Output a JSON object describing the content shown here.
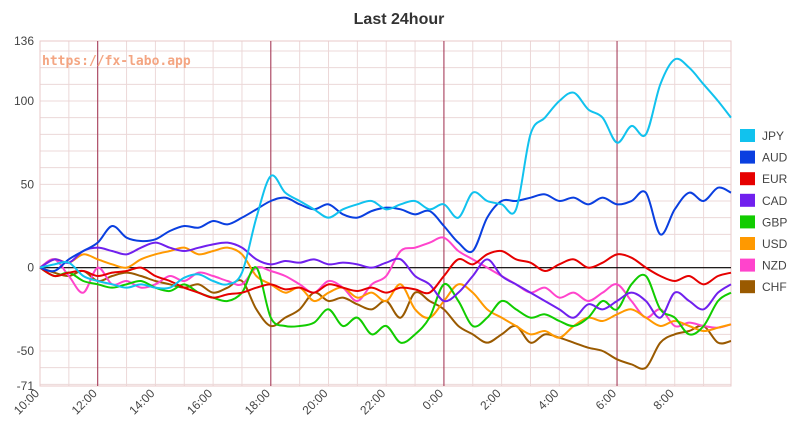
{
  "chart_data": {
    "type": "line",
    "title": "Last 24hour",
    "watermark": "https://fx-labo.app",
    "xlabel": "",
    "ylabel": "",
    "ylim": [
      -71,
      136
    ],
    "y_ticks": [
      136,
      100,
      50,
      0,
      -50,
      -71
    ],
    "x_range": [
      10,
      33.95
    ],
    "x_ticks": [
      {
        "x": 10,
        "label": "10:00"
      },
      {
        "x": 12,
        "label": "12:00"
      },
      {
        "x": 14,
        "label": "14:00"
      },
      {
        "x": 16,
        "label": "16:00"
      },
      {
        "x": 18,
        "label": "18:00"
      },
      {
        "x": 20,
        "label": "20:00"
      },
      {
        "x": 22,
        "label": "22:00"
      },
      {
        "x": 24,
        "label": "0:00"
      },
      {
        "x": 26,
        "label": "2:00"
      },
      {
        "x": 28,
        "label": "4:00"
      },
      {
        "x": 30,
        "label": "6:00"
      },
      {
        "x": 32,
        "label": "8:00"
      }
    ],
    "vertical_markers": [
      12,
      18,
      24,
      30
    ],
    "grid": true,
    "legend_position": "right",
    "series": [
      {
        "name": "JPY",
        "color": "#11c2ee",
        "x": [
          10,
          10.5,
          11,
          11.5,
          12,
          12.5,
          13,
          13.5,
          14,
          14.5,
          15,
          15.5,
          16,
          16.5,
          17,
          17.5,
          18,
          18.5,
          19,
          19.5,
          20,
          20.5,
          21,
          21.5,
          22,
          22.5,
          23,
          23.5,
          24,
          24.5,
          25,
          25.5,
          26,
          26.5,
          27,
          27.5,
          28,
          28.5,
          29,
          29.5,
          30,
          30.5,
          31,
          31.5,
          32,
          32.5,
          33,
          33.5,
          33.95
        ],
        "y": [
          0,
          2,
          3,
          -5,
          -8,
          -10,
          -12,
          -10,
          -12,
          -12,
          -6,
          -4,
          -8,
          -10,
          -3,
          30,
          55,
          45,
          40,
          35,
          30,
          35,
          38,
          40,
          35,
          38,
          40,
          35,
          38,
          30,
          45,
          40,
          38,
          35,
          80,
          90,
          100,
          105,
          95,
          90,
          75,
          85,
          80,
          110,
          125,
          120,
          110,
          100,
          90
        ]
      },
      {
        "name": "AUD",
        "color": "#0a3fe0",
        "x": [
          10,
          10.5,
          11,
          11.5,
          12,
          12.5,
          13,
          13.5,
          14,
          14.5,
          15,
          15.5,
          16,
          16.5,
          17,
          17.5,
          18,
          18.5,
          19,
          19.5,
          20,
          20.5,
          21,
          21.5,
          22,
          22.5,
          23,
          23.5,
          24,
          24.5,
          25,
          25.5,
          26,
          26.5,
          27,
          27.5,
          28,
          28.5,
          29,
          29.5,
          30,
          30.5,
          31,
          31.5,
          32,
          32.5,
          33,
          33.5,
          33.95
        ],
        "y": [
          0,
          -2,
          5,
          10,
          15,
          25,
          18,
          16,
          17,
          22,
          25,
          24,
          28,
          26,
          30,
          35,
          40,
          42,
          38,
          35,
          38,
          32,
          30,
          34,
          36,
          35,
          32,
          34,
          25,
          15,
          10,
          30,
          40,
          40,
          42,
          44,
          40,
          42,
          38,
          42,
          38,
          40,
          45,
          20,
          35,
          45,
          40,
          48,
          45
        ]
      },
      {
        "name": "EUR",
        "color": "#e60000",
        "x": [
          10,
          10.5,
          11,
          11.5,
          12,
          12.5,
          13,
          13.5,
          14,
          14.5,
          15,
          15.5,
          16,
          16.5,
          17,
          17.5,
          18,
          18.5,
          19,
          19.5,
          20,
          20.5,
          21,
          21.5,
          22,
          22.5,
          23,
          23.5,
          24,
          24.5,
          25,
          25.5,
          26,
          26.5,
          27,
          27.5,
          28,
          28.5,
          29,
          29.5,
          30,
          30.5,
          31,
          31.5,
          32,
          32.5,
          33,
          33.5,
          33.95
        ],
        "y": [
          0,
          -5,
          -3,
          -2,
          -5,
          -3,
          -2,
          0,
          -5,
          -8,
          -12,
          -15,
          -18,
          -16,
          -15,
          -12,
          -10,
          -13,
          -12,
          -15,
          -10,
          -12,
          -14,
          -12,
          -15,
          -12,
          -13,
          -15,
          -5,
          5,
          2,
          8,
          10,
          5,
          3,
          -2,
          2,
          5,
          0,
          3,
          8,
          6,
          0,
          -5,
          -8,
          -5,
          -10,
          -5,
          -3
        ]
      },
      {
        "name": "CAD",
        "color": "#7020ee",
        "x": [
          10,
          10.5,
          11,
          11.5,
          12,
          12.5,
          13,
          13.5,
          14,
          14.5,
          15,
          15.5,
          16,
          16.5,
          17,
          17.5,
          18,
          18.5,
          19,
          19.5,
          20,
          20.5,
          21,
          21.5,
          22,
          22.5,
          23,
          23.5,
          24,
          24.5,
          25,
          25.5,
          26,
          26.5,
          27,
          27.5,
          28,
          28.5,
          29,
          29.5,
          30,
          30.5,
          31,
          31.5,
          32,
          32.5,
          33,
          33.5,
          33.95
        ],
        "y": [
          0,
          5,
          3,
          10,
          12,
          10,
          8,
          12,
          15,
          12,
          10,
          12,
          14,
          15,
          12,
          5,
          2,
          4,
          3,
          5,
          2,
          3,
          2,
          0,
          3,
          5,
          -5,
          -10,
          -20,
          -15,
          -5,
          5,
          -5,
          -10,
          -15,
          -20,
          -25,
          -30,
          -22,
          -25,
          -20,
          -15,
          -20,
          -30,
          -15,
          -20,
          -25,
          -15,
          -10
        ]
      },
      {
        "name": "GBP",
        "color": "#11cc00",
        "x": [
          10,
          10.5,
          11,
          11.5,
          12,
          12.5,
          13,
          13.5,
          14,
          14.5,
          15,
          15.5,
          16,
          16.5,
          17,
          17.5,
          18,
          18.5,
          19,
          19.5,
          20,
          20.5,
          21,
          21.5,
          22,
          22.5,
          23,
          23.5,
          24,
          24.5,
          25,
          25.5,
          26,
          26.5,
          27,
          27.5,
          28,
          28.5,
          29,
          29.5,
          30,
          30.5,
          31,
          31.5,
          32,
          32.5,
          33,
          33.5,
          33.95
        ],
        "y": [
          0,
          -5,
          -3,
          -8,
          -10,
          -12,
          -10,
          -8,
          -12,
          -14,
          -10,
          -15,
          -18,
          -20,
          -15,
          0,
          -30,
          -35,
          -35,
          -33,
          -25,
          -35,
          -30,
          -40,
          -35,
          -45,
          -40,
          -30,
          -10,
          -20,
          -35,
          -30,
          -20,
          -25,
          -30,
          -28,
          -32,
          -35,
          -30,
          -20,
          -25,
          -10,
          -5,
          -25,
          -30,
          -40,
          -35,
          -20,
          -15
        ]
      },
      {
        "name": "USD",
        "color": "#ff9900",
        "x": [
          10,
          10.5,
          11,
          11.5,
          12,
          12.5,
          13,
          13.5,
          14,
          14.5,
          15,
          15.5,
          16,
          16.5,
          17,
          17.5,
          18,
          18.5,
          19,
          19.5,
          20,
          20.5,
          21,
          21.5,
          22,
          22.5,
          23,
          23.5,
          24,
          24.5,
          25,
          25.5,
          26,
          26.5,
          27,
          27.5,
          28,
          28.5,
          29,
          29.5,
          30,
          30.5,
          31,
          31.5,
          32,
          32.5,
          33,
          33.5,
          33.95
        ],
        "y": [
          0,
          5,
          3,
          8,
          5,
          2,
          0,
          5,
          8,
          10,
          12,
          8,
          10,
          12,
          8,
          -5,
          -10,
          -15,
          -12,
          -20,
          -15,
          -12,
          -18,
          -15,
          -20,
          -10,
          -25,
          -30,
          -20,
          -10,
          -15,
          -25,
          -30,
          -35,
          -40,
          -38,
          -42,
          -35,
          -30,
          -32,
          -28,
          -25,
          -30,
          -35,
          -32,
          -35,
          -38,
          -36,
          -34
        ]
      },
      {
        "name": "NZD",
        "color": "#ff44cc",
        "x": [
          10,
          10.5,
          11,
          11.5,
          12,
          12.5,
          13,
          13.5,
          14,
          14.5,
          15,
          15.5,
          16,
          16.5,
          17,
          17.5,
          18,
          18.5,
          19,
          19.5,
          20,
          20.5,
          21,
          21.5,
          22,
          22.5,
          23,
          23.5,
          24,
          24.5,
          25,
          25.5,
          26,
          26.5,
          27,
          27.5,
          28,
          28.5,
          29,
          29.5,
          30,
          30.5,
          31,
          31.5,
          32,
          32.5,
          33,
          33.5,
          33.95
        ],
        "y": [
          0,
          5,
          -5,
          -15,
          0,
          -10,
          -8,
          -12,
          -10,
          -5,
          -8,
          -3,
          -5,
          -8,
          -10,
          0,
          -2,
          -5,
          -10,
          -15,
          -8,
          -12,
          -20,
          -10,
          -5,
          10,
          12,
          15,
          18,
          10,
          5,
          0,
          -5,
          -10,
          -15,
          -12,
          -18,
          -15,
          -20,
          -15,
          -10,
          -20,
          -30,
          -25,
          -35,
          -33,
          -35,
          -36,
          -34
        ]
      },
      {
        "name": "CHF",
        "color": "#9a5a00",
        "x": [
          10,
          10.5,
          11,
          11.5,
          12,
          12.5,
          13,
          13.5,
          14,
          14.5,
          15,
          15.5,
          16,
          16.5,
          17,
          17.5,
          18,
          18.5,
          19,
          19.5,
          20,
          20.5,
          21,
          21.5,
          22,
          22.5,
          23,
          23.5,
          24,
          24.5,
          25,
          25.5,
          26,
          26.5,
          27,
          27.5,
          28,
          28.5,
          29,
          29.5,
          30,
          30.5,
          31,
          31.5,
          32,
          32.5,
          33,
          33.5,
          33.95
        ],
        "y": [
          0,
          -3,
          -5,
          -2,
          -8,
          -5,
          -3,
          -5,
          -8,
          -10,
          -12,
          -10,
          -15,
          -12,
          -8,
          -25,
          -35,
          -30,
          -25,
          -15,
          -20,
          -18,
          -22,
          -25,
          -20,
          -30,
          -15,
          -20,
          -25,
          -35,
          -40,
          -45,
          -40,
          -35,
          -45,
          -40,
          -42,
          -45,
          -48,
          -50,
          -55,
          -58,
          -60,
          -45,
          -40,
          -38,
          -35,
          -45,
          -44
        ]
      }
    ]
  }
}
